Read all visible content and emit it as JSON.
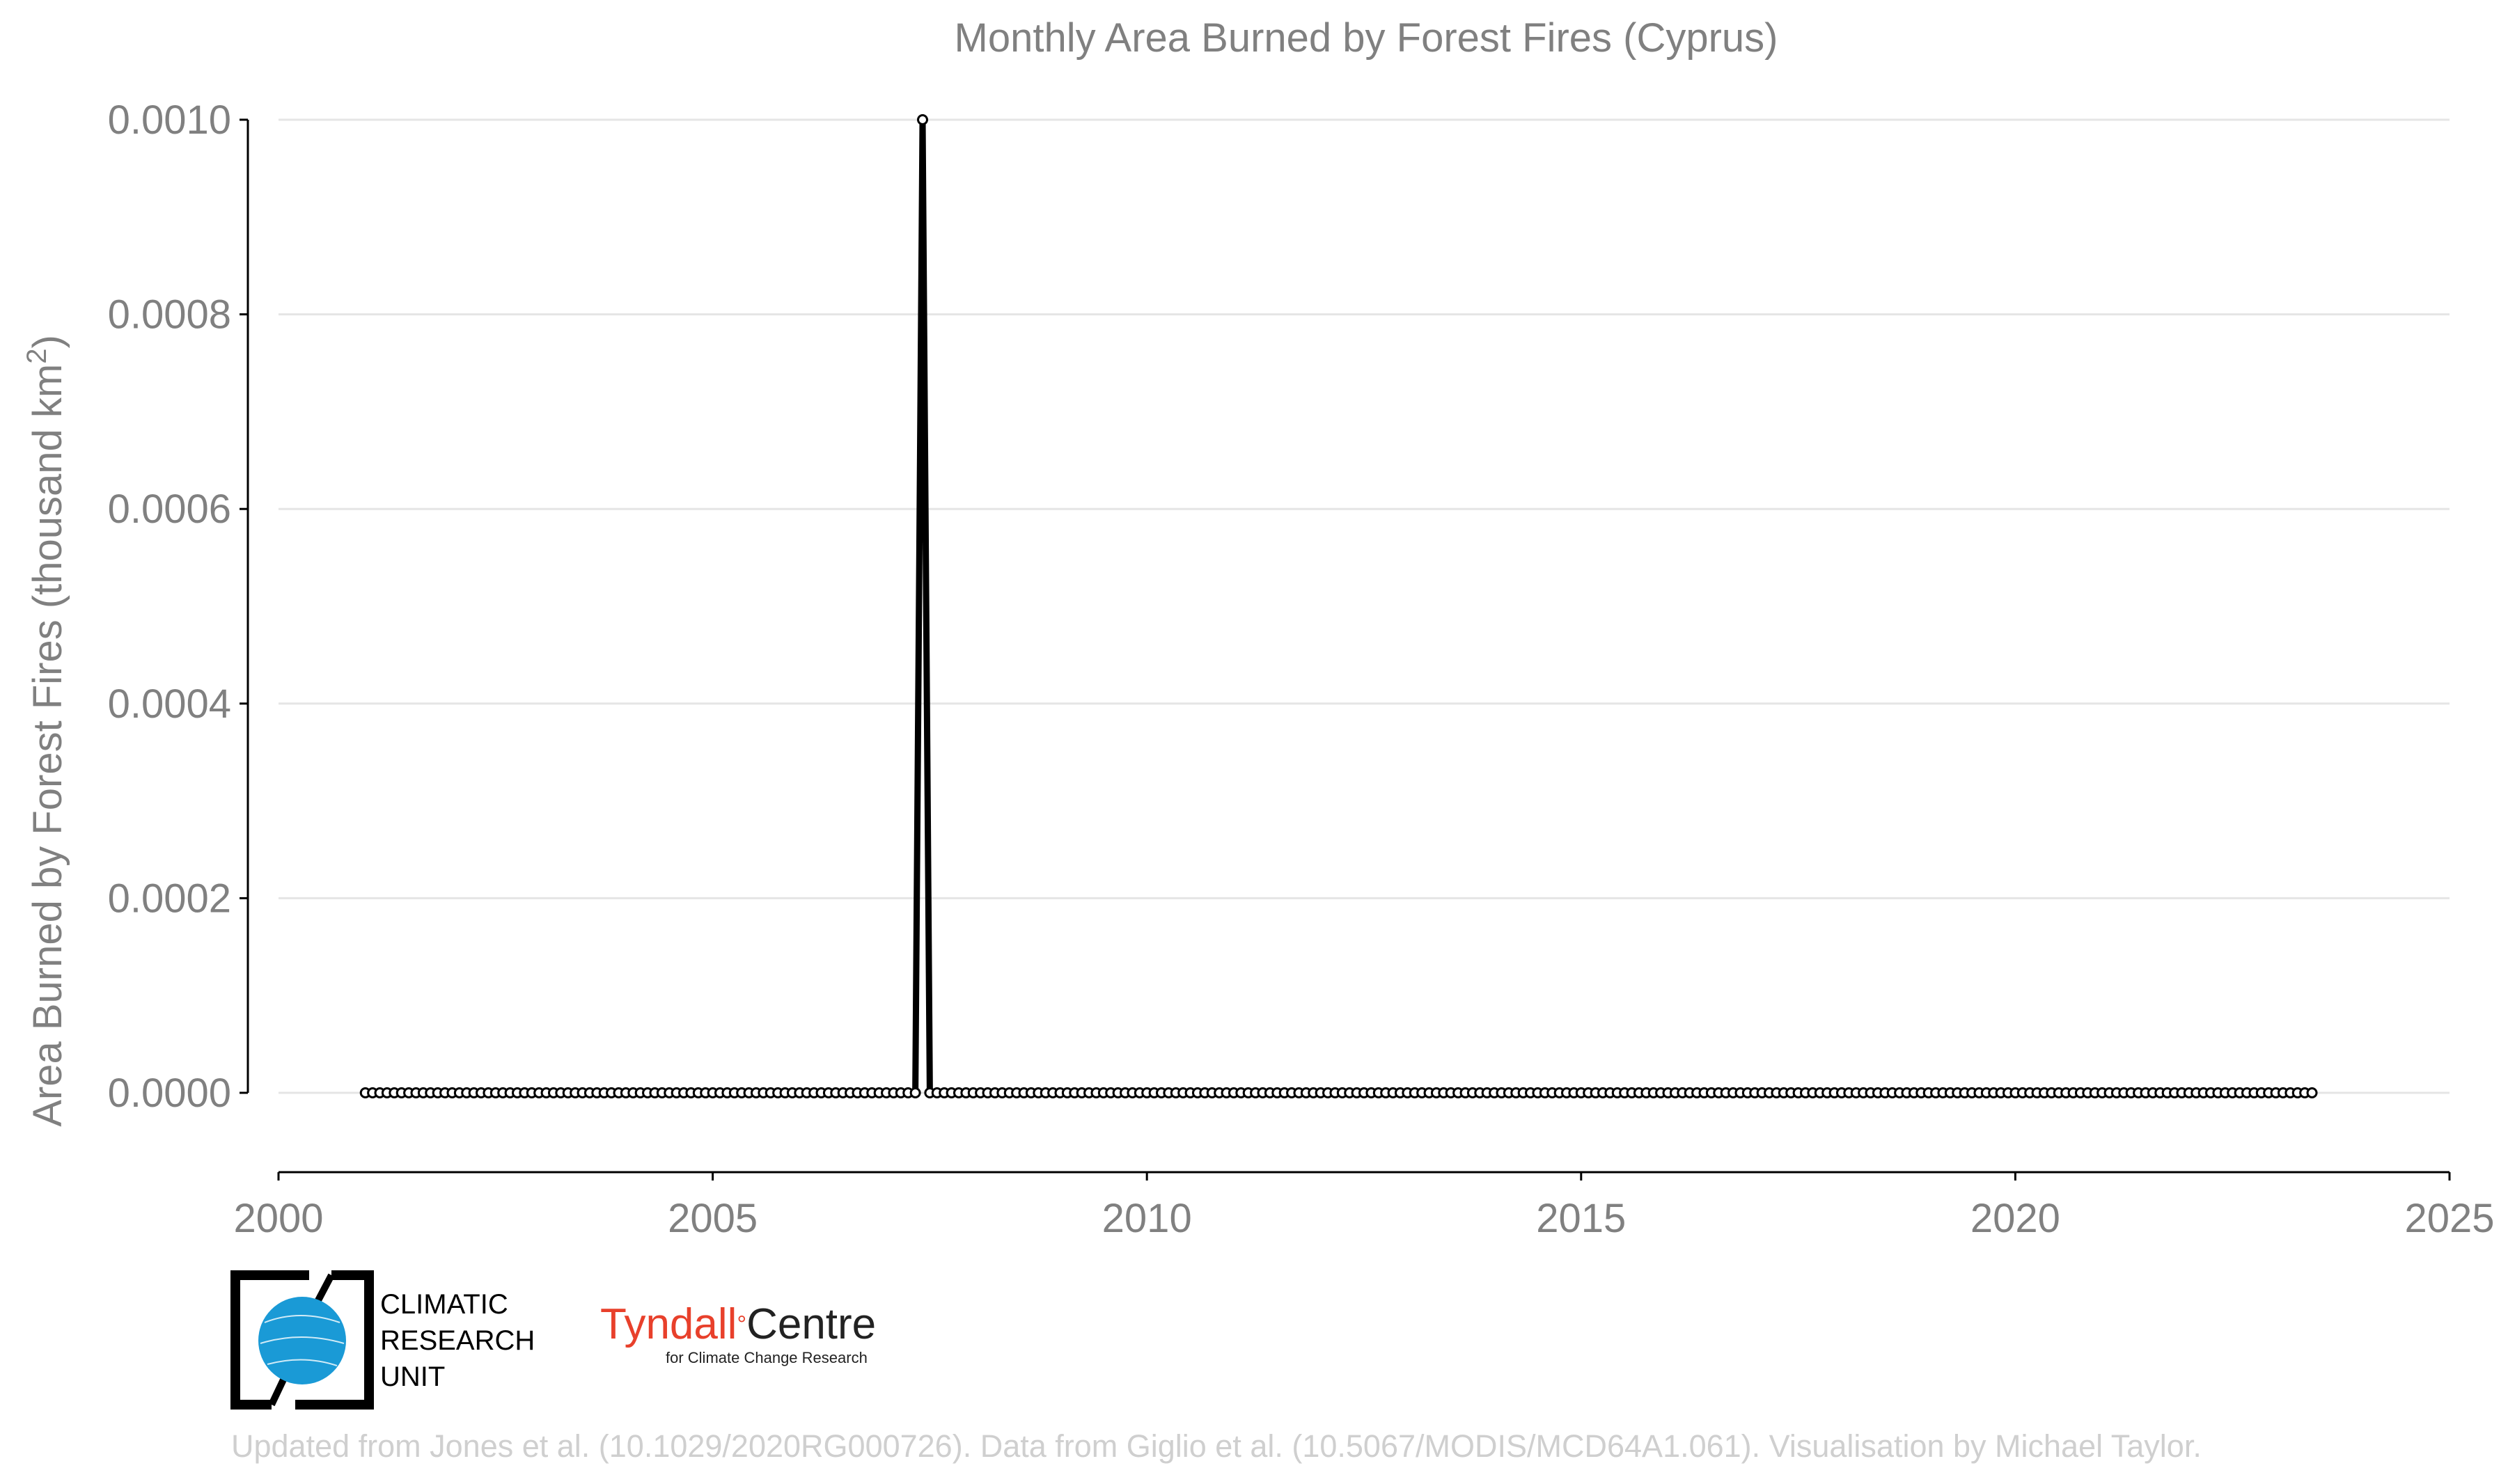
{
  "chart_data": {
    "type": "line",
    "title": "Monthly Area Burned by Forest Fires (Cyprus)",
    "ylabel": "Area Burned by Forest Fires (thousand km",
    "ylabel_sup": "2",
    "ylabel_end": ")",
    "xlabel": "",
    "xlim": [
      2000,
      2025
    ],
    "ylim": [
      0.0,
      0.001
    ],
    "x_ticks": [
      2000,
      2005,
      2010,
      2015,
      2020,
      2025
    ],
    "y_ticks": [
      0.0,
      0.0002,
      0.0004,
      0.0006,
      0.0008,
      0.001
    ],
    "y_tick_labels": [
      "0.0000",
      "0.0002",
      "0.0004",
      "0.0006",
      "0.0008",
      "0.0010"
    ],
    "grid": "horizontal",
    "series": [
      {
        "start": "2001-01",
        "end": "2023-06",
        "frequency": "monthly",
        "default_value": 0.0,
        "nonzero": [
          {
            "date": "2007-06",
            "value": 0.001
          }
        ],
        "color": "#000000",
        "marker": "open-circle"
      }
    ]
  },
  "logos": {
    "cru_lines": [
      "CLIMATIC",
      "RESEARCH",
      "UNIT"
    ],
    "tyndall_name_a": "Tyndall",
    "tyndall_degree": "°",
    "tyndall_name_b": "Centre",
    "tyndall_sub": "for Climate Change Research"
  },
  "credit": "Updated from Jones et al. (10.1029/2020RG000726). Data from Giglio et al. (10.5067/MODIS/MCD64A1.061). Visualisation by Michael Taylor.",
  "colors": {
    "line": "#000000",
    "text": "#808080",
    "grid": "#e5e5e5",
    "cru_blue": "#1a9ad6",
    "tyndall_red": "#e8402b",
    "credit": "#cfcfcf"
  }
}
